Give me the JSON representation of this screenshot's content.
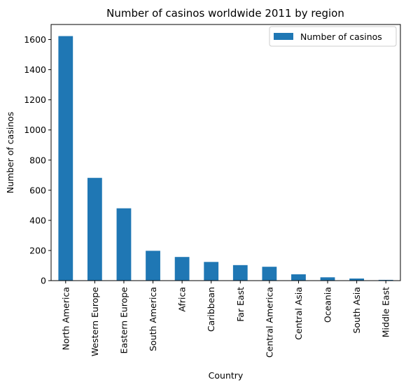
{
  "chart_data": {
    "type": "bar",
    "title": "Number of casinos worldwide 2011 by region",
    "xlabel": "Country",
    "ylabel": "Number of casinos",
    "categories": [
      "North America",
      "Western Europe",
      "Eastern Europe",
      "South America",
      "Africa",
      "Caribbean",
      "Far East",
      "Central America",
      "Central Asia",
      "Oceania",
      "South Asia",
      "Middle East"
    ],
    "series": [
      {
        "name": "Number of casinos",
        "color": "#1f77b4",
        "values": [
          1623,
          682,
          480,
          198,
          157,
          124,
          103,
          92,
          42,
          22,
          14,
          5
        ]
      }
    ],
    "ylim": [
      0,
      1700
    ],
    "yticks": [
      0,
      200,
      400,
      600,
      800,
      1000,
      1200,
      1400,
      1600
    ],
    "legend": "top-right",
    "grid": false
  }
}
